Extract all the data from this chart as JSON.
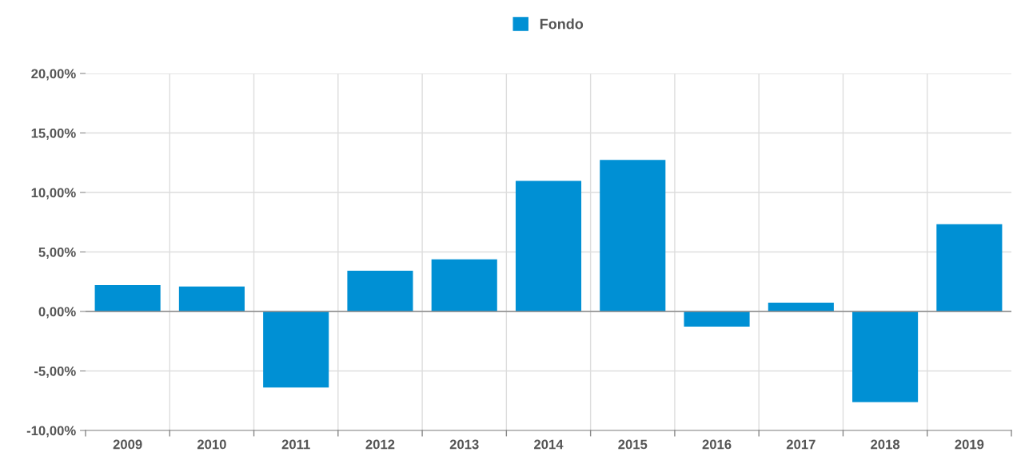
{
  "chart_data": {
    "type": "bar",
    "categories": [
      "2009",
      "2010",
      "2011",
      "2012",
      "2013",
      "2014",
      "2015",
      "2016",
      "2017",
      "2018",
      "2019"
    ],
    "series": [
      {
        "name": "Fondo",
        "color": "#0090d4",
        "values": [
          2.22,
          2.09,
          -6.4,
          3.43,
          4.38,
          10.98,
          12.73,
          -1.28,
          0.74,
          -7.61,
          7.34
        ]
      }
    ],
    "ylim": [
      -10,
      20
    ],
    "yticks": [
      {
        "value": -10,
        "label": "-10,00%"
      },
      {
        "value": -5,
        "label": "-5,00%"
      },
      {
        "value": 0,
        "label": "0,00%"
      },
      {
        "value": 5,
        "label": "5,00%"
      },
      {
        "value": 10,
        "label": "10,00%"
      },
      {
        "value": 15,
        "label": "15,00%"
      },
      {
        "value": 20,
        "label": "20,00%"
      }
    ],
    "grid": true,
    "legend": "top"
  }
}
